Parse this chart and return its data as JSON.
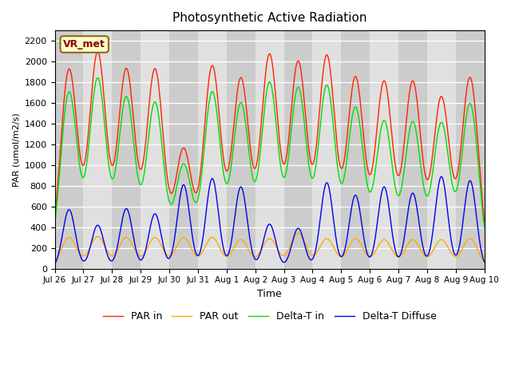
{
  "title": "Photosynthetic Active Radiation",
  "ylabel": "PAR (umol/m2/s)",
  "xlabel": "Time",
  "ylim": [
    0,
    2300
  ],
  "plot_background": "#e0e0e0",
  "legend_label": "VR_met",
  "series_labels": [
    "PAR in",
    "PAR out",
    "Delta-T in",
    "Delta-T Diffuse"
  ],
  "series_colors": [
    "#ff2200",
    "#ffaa00",
    "#00dd00",
    "#0000ee"
  ],
  "x_tick_labels": [
    "Jul 26",
    "Jul 27",
    "Jul 28",
    "Jul 29",
    "Jul 30",
    "Jul 31",
    "Aug 1",
    "Aug 2",
    "Aug 3",
    "Aug 4",
    "Aug 5",
    "Aug 6",
    "Aug 7",
    "Aug 8",
    "Aug 9",
    "Aug 10"
  ],
  "yticks": [
    0,
    200,
    400,
    600,
    800,
    1000,
    1200,
    1400,
    1600,
    1800,
    2000,
    2200
  ],
  "num_days": 15,
  "points_per_day": 144
}
